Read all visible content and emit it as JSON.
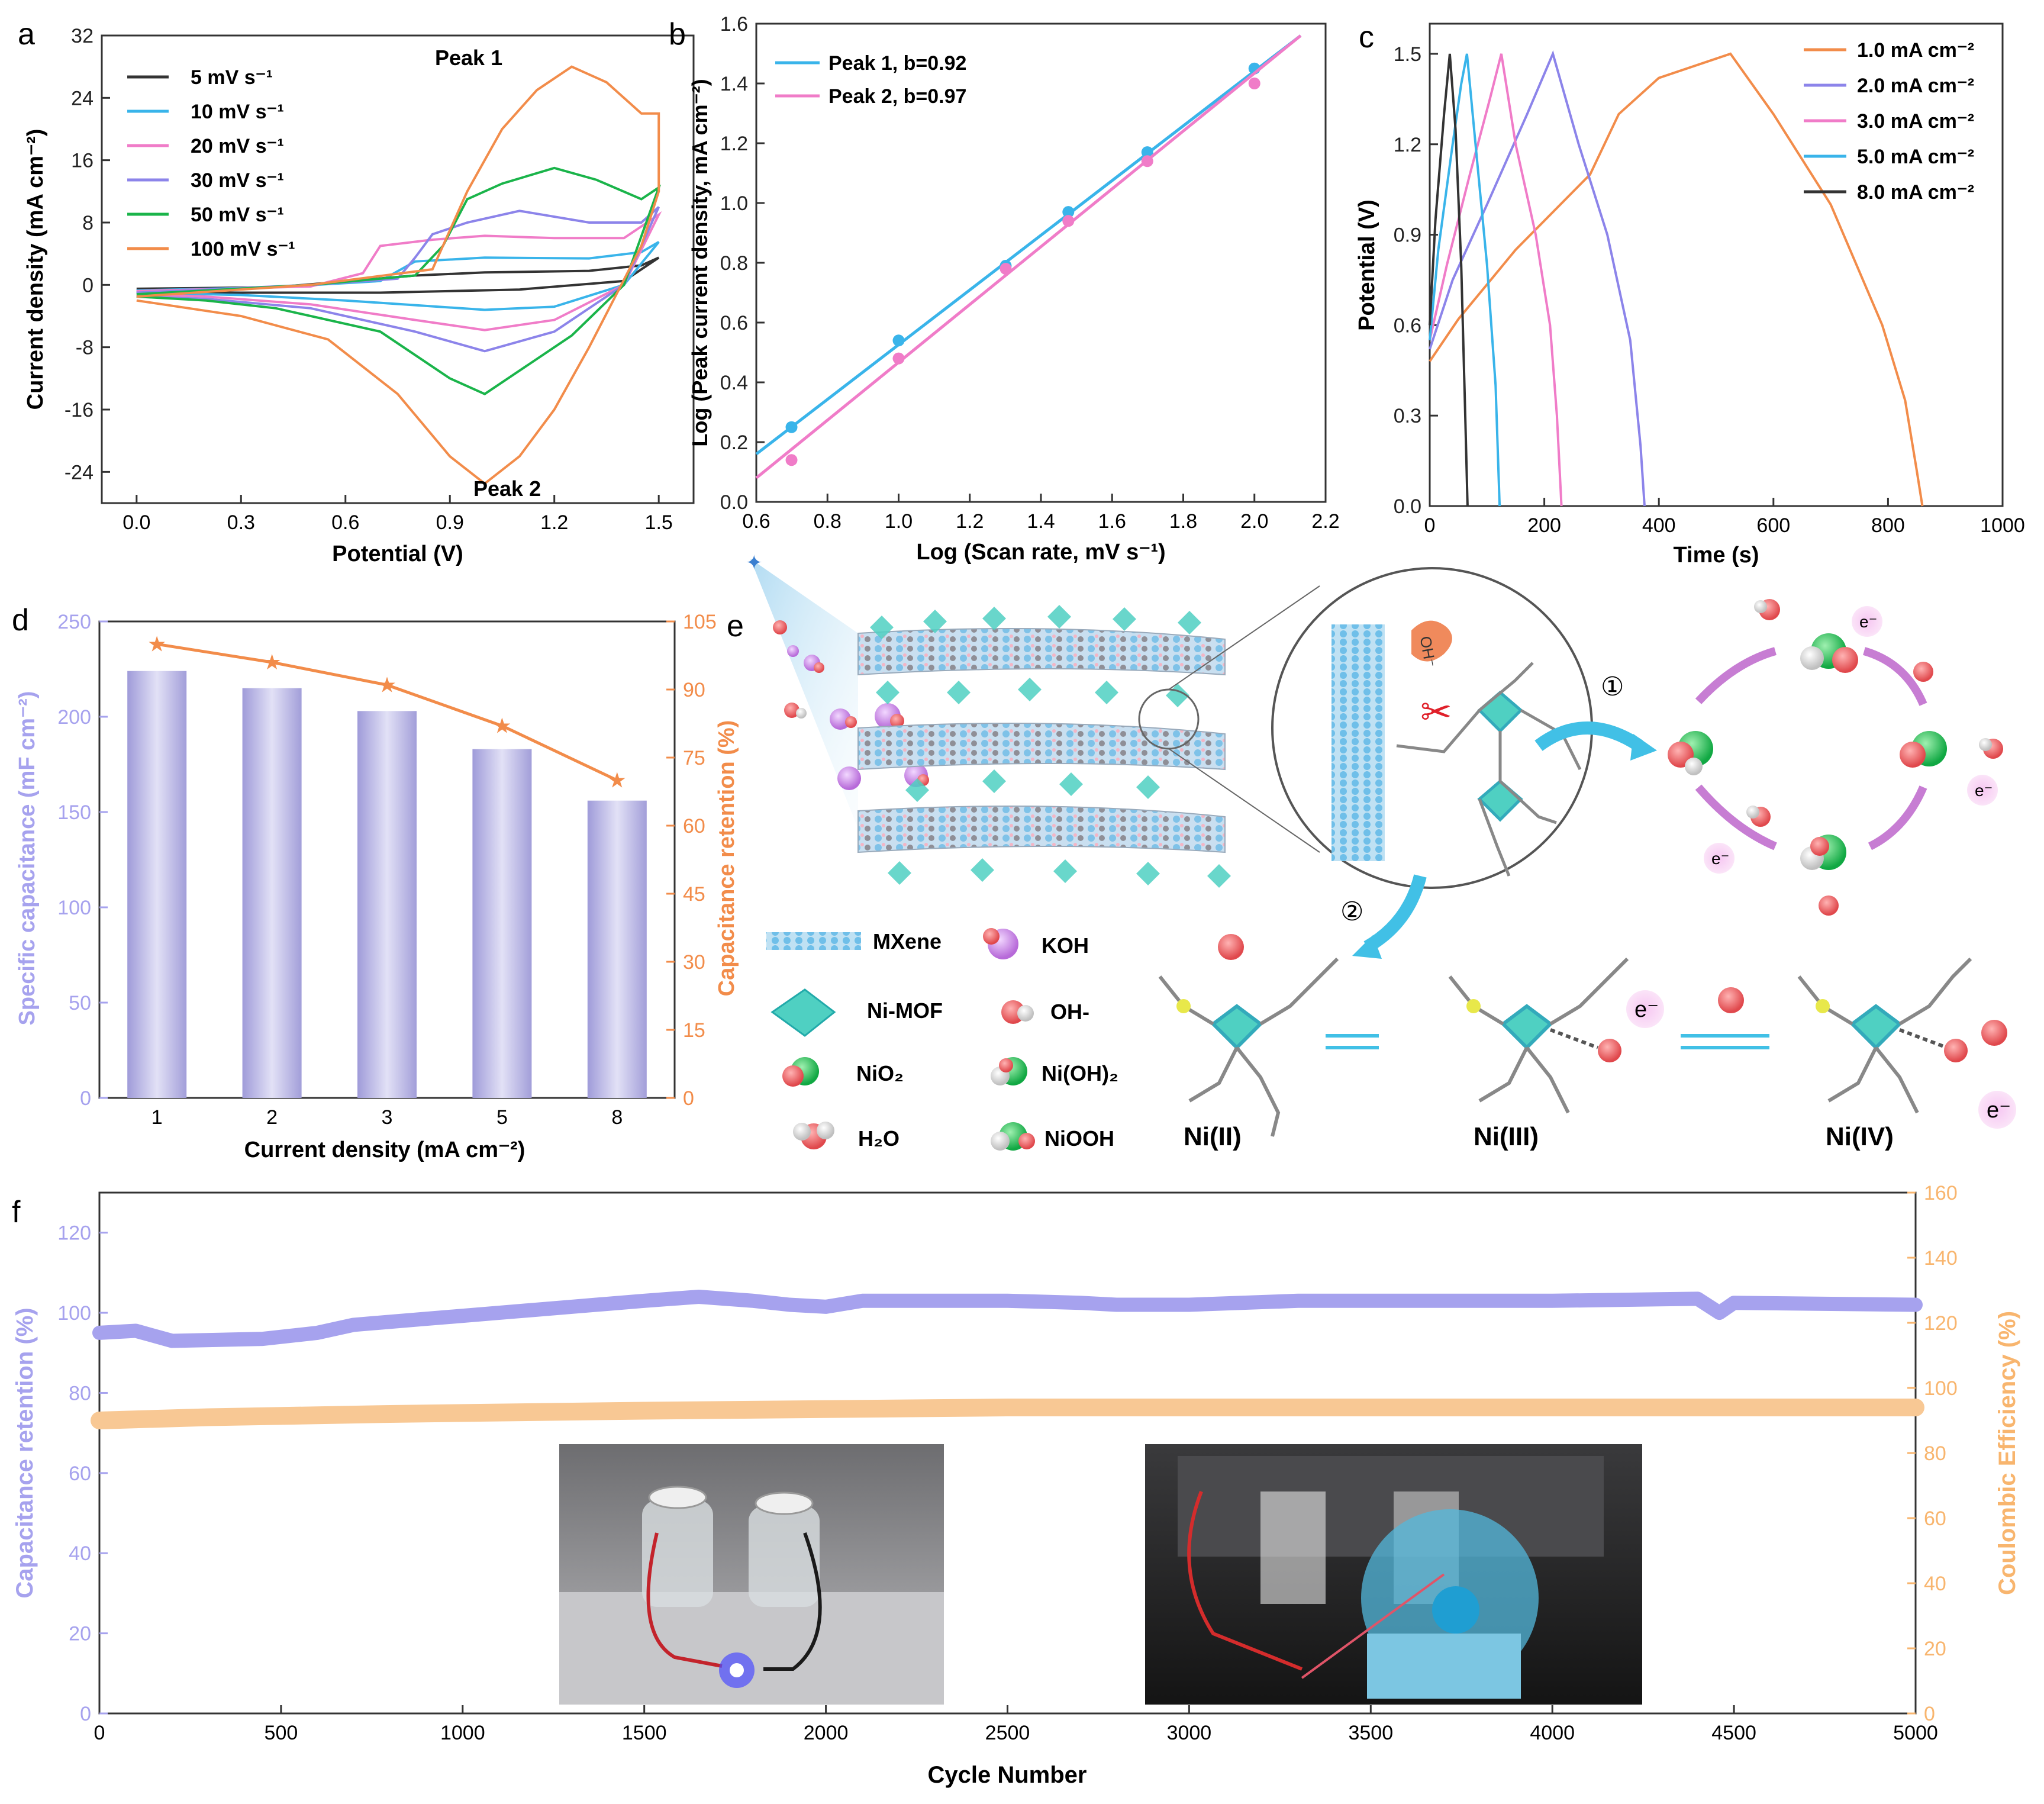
{
  "colors": {
    "orange": "#f28c4a",
    "blue": "#39b4ea",
    "pink": "#f07cc8",
    "purple": "#8c84ea",
    "green": "#1ab44a",
    "black": "#333333",
    "bar": "#b9b7e6",
    "teal": "#4fd0c2",
    "arrow": "#41c0e6",
    "retention": "#a6a2ee",
    "coulombic": "#f8c894"
  },
  "panel_labels": [
    "a",
    "b",
    "c",
    "d",
    "e",
    "f"
  ],
  "chart_data": [
    {
      "id": "a",
      "type": "line",
      "xlabel": "Potential (V)",
      "ylabel": "Current density (mA cm⁻²)",
      "xlim": [
        -0.1,
        1.6
      ],
      "ylim": [
        -28,
        32
      ],
      "xticks": [
        "0.0",
        "0.3",
        "0.6",
        "0.9",
        "1.2",
        "1.5"
      ],
      "yticks": [
        "-24",
        "-16",
        "-8",
        "0",
        "8",
        "16",
        "24",
        "32"
      ],
      "annotations": [
        "Peak 1",
        "Peak 2"
      ],
      "series": [
        {
          "name": "5   mV s⁻¹",
          "color": "black",
          "anodic": [
            [
              0,
              -0.5
            ],
            [
              0.4,
              -0.3
            ],
            [
              0.8,
              1.2
            ],
            [
              1.0,
              1.6
            ],
            [
              1.3,
              1.8
            ],
            [
              1.45,
              2.5
            ],
            [
              1.5,
              3.5
            ]
          ],
          "cathodic": [
            [
              1.5,
              3.5
            ],
            [
              1.4,
              0.5
            ],
            [
              1.1,
              -0.6
            ],
            [
              0.7,
              -1.0
            ],
            [
              0.3,
              -1.0
            ],
            [
              0,
              -0.9
            ]
          ]
        },
        {
          "name": "10  mV s⁻¹",
          "color": "blue",
          "anodic": [
            [
              0,
              -0.7
            ],
            [
              0.4,
              -0.3
            ],
            [
              0.7,
              0.5
            ],
            [
              0.8,
              3.0
            ],
            [
              1.0,
              3.5
            ],
            [
              1.3,
              3.4
            ],
            [
              1.45,
              4.2
            ],
            [
              1.5,
              5.5
            ]
          ],
          "cathodic": [
            [
              1.5,
              5.5
            ],
            [
              1.4,
              0
            ],
            [
              1.2,
              -2.8
            ],
            [
              1.0,
              -3.2
            ],
            [
              0.6,
              -2.0
            ],
            [
              0.3,
              -1.3
            ],
            [
              0,
              -1.0
            ]
          ]
        },
        {
          "name": "20  mV s⁻¹",
          "color": "pink",
          "anodic": [
            [
              0,
              -0.8
            ],
            [
              0.5,
              -0.2
            ],
            [
              0.65,
              1.5
            ],
            [
              0.7,
              5.0
            ],
            [
              0.85,
              5.8
            ],
            [
              1.0,
              6.3
            ],
            [
              1.2,
              6.0
            ],
            [
              1.4,
              6.0
            ],
            [
              1.5,
              9.0
            ]
          ],
          "cathodic": [
            [
              1.5,
              9.0
            ],
            [
              1.4,
              0
            ],
            [
              1.2,
              -4.5
            ],
            [
              1.0,
              -5.8
            ],
            [
              0.8,
              -4.5
            ],
            [
              0.5,
              -2.5
            ],
            [
              0.2,
              -1.5
            ],
            [
              0,
              -1.2
            ]
          ]
        },
        {
          "name": "30  mV s⁻¹",
          "color": "purple",
          "anodic": [
            [
              0,
              -1.0
            ],
            [
              0.5,
              0
            ],
            [
              0.75,
              0.8
            ],
            [
              0.8,
              3.5
            ],
            [
              0.85,
              6.5
            ],
            [
              0.95,
              8.0
            ],
            [
              1.1,
              9.5
            ],
            [
              1.3,
              8.0
            ],
            [
              1.45,
              8.0
            ],
            [
              1.5,
              10.0
            ]
          ],
          "cathodic": [
            [
              1.5,
              10.0
            ],
            [
              1.4,
              0
            ],
            [
              1.2,
              -6.0
            ],
            [
              1.0,
              -8.5
            ],
            [
              0.8,
              -6.0
            ],
            [
              0.5,
              -3.0
            ],
            [
              0.2,
              -1.8
            ],
            [
              0,
              -1.5
            ]
          ]
        },
        {
          "name": "50  mV s⁻¹",
          "color": "green",
          "anodic": [
            [
              0,
              -1.2
            ],
            [
              0.5,
              0
            ],
            [
              0.8,
              1.2
            ],
            [
              0.88,
              5.0
            ],
            [
              0.95,
              11.0
            ],
            [
              1.05,
              13.0
            ],
            [
              1.2,
              15.0
            ],
            [
              1.32,
              13.5
            ],
            [
              1.45,
              11.0
            ],
            [
              1.5,
              12.5
            ]
          ],
          "cathodic": [
            [
              1.5,
              12.5
            ],
            [
              1.4,
              0
            ],
            [
              1.25,
              -6.5
            ],
            [
              1.1,
              -11.0
            ],
            [
              1.0,
              -14.0
            ],
            [
              0.9,
              -12.0
            ],
            [
              0.7,
              -6.0
            ],
            [
              0.4,
              -3.0
            ],
            [
              0.2,
              -2.0
            ],
            [
              0,
              -1.5
            ]
          ]
        },
        {
          "name": "100 mV s⁻¹",
          "color": "orange",
          "anodic": [
            [
              0,
              -1.5
            ],
            [
              0.5,
              0
            ],
            [
              0.85,
              2.0
            ],
            [
              0.95,
              12.0
            ],
            [
              1.05,
              20.0
            ],
            [
              1.15,
              25.0
            ],
            [
              1.25,
              28.0
            ],
            [
              1.35,
              26.0
            ],
            [
              1.45,
              22.0
            ],
            [
              1.5,
              22.0
            ],
            [
              1.5,
              12.0
            ]
          ],
          "cathodic": [
            [
              1.5,
              12.0
            ],
            [
              1.45,
              5.0
            ],
            [
              1.3,
              -8.0
            ],
            [
              1.2,
              -16.0
            ],
            [
              1.1,
              -22.0
            ],
            [
              1.0,
              -25.5
            ],
            [
              0.9,
              -22.0
            ],
            [
              0.75,
              -14.0
            ],
            [
              0.55,
              -7.0
            ],
            [
              0.3,
              -4.0
            ],
            [
              0,
              -2.0
            ]
          ]
        }
      ]
    },
    {
      "id": "b",
      "type": "scatter",
      "xlabel": "Log (Scan rate, mV s⁻¹)",
      "ylabel": "Log (Peak current density, mA cm⁻²)",
      "xlim": [
        0.6,
        2.2
      ],
      "ylim": [
        0.0,
        1.6
      ],
      "xticks": [
        "0.6",
        "0.8",
        "1.0",
        "1.2",
        "1.4",
        "1.6",
        "1.8",
        "2.0",
        "2.2"
      ],
      "yticks": [
        "0.0",
        "0.2",
        "0.4",
        "0.6",
        "0.8",
        "1.0",
        "1.2",
        "1.4",
        "1.6"
      ],
      "x": [
        0.699,
        1.0,
        1.301,
        1.477,
        1.699,
        2.0
      ],
      "series": [
        {
          "name": "Peak 1, b=0.92",
          "color": "blue",
          "values": [
            0.25,
            0.54,
            0.79,
            0.97,
            1.17,
            1.45
          ],
          "fit": [
            [
              0.6,
              0.16
            ],
            [
              2.13,
              1.56
            ]
          ]
        },
        {
          "name": "Peak 2, b=0.97",
          "color": "pink",
          "values": [
            0.14,
            0.48,
            0.78,
            0.94,
            1.14,
            1.4
          ],
          "fit": [
            [
              0.6,
              0.08
            ],
            [
              2.13,
              1.56
            ]
          ]
        }
      ]
    },
    {
      "id": "c",
      "type": "line",
      "xlabel": "Time (s)",
      "ylabel": "Potential (V)",
      "xlim": [
        0,
        1000
      ],
      "ylim": [
        0,
        1.6
      ],
      "xticks": [
        "0",
        "200",
        "400",
        "600",
        "800",
        "1000"
      ],
      "yticks": [
        "0.0",
        "0.3",
        "0.6",
        "0.9",
        "1.2",
        "1.5"
      ],
      "series": [
        {
          "name": "1.0 mA cm⁻²",
          "color": "orange",
          "points": [
            [
              0,
              0.48
            ],
            [
              50,
              0.62
            ],
            [
              150,
              0.85
            ],
            [
              280,
              1.1
            ],
            [
              330,
              1.3
            ],
            [
              400,
              1.42
            ],
            [
              525,
              1.5
            ],
            [
              600,
              1.3
            ],
            [
              700,
              1.0
            ],
            [
              790,
              0.6
            ],
            [
              830,
              0.35
            ],
            [
              850,
              0.12
            ],
            [
              860,
              0
            ]
          ]
        },
        {
          "name": "2.0 mA cm⁻²",
          "color": "purple",
          "points": [
            [
              0,
              0.52
            ],
            [
              40,
              0.75
            ],
            [
              100,
              1.0
            ],
            [
              170,
              1.3
            ],
            [
              215,
              1.5
            ],
            [
              260,
              1.2
            ],
            [
              310,
              0.9
            ],
            [
              350,
              0.55
            ],
            [
              368,
              0.2
            ],
            [
              375,
              0
            ]
          ]
        },
        {
          "name": "3.0 mA cm⁻²",
          "color": "pink",
          "points": [
            [
              0,
              0.55
            ],
            [
              30,
              0.8
            ],
            [
              70,
              1.1
            ],
            [
              105,
              1.35
            ],
            [
              125,
              1.5
            ],
            [
              150,
              1.2
            ],
            [
              185,
              0.9
            ],
            [
              210,
              0.6
            ],
            [
              222,
              0.3
            ],
            [
              230,
              0
            ]
          ]
        },
        {
          "name": "5.0 mA cm⁻²",
          "color": "blue",
          "points": [
            [
              0,
              0.55
            ],
            [
              15,
              0.85
            ],
            [
              40,
              1.2
            ],
            [
              55,
              1.4
            ],
            [
              65,
              1.5
            ],
            [
              80,
              1.2
            ],
            [
              100,
              0.8
            ],
            [
              115,
              0.4
            ],
            [
              122,
              0
            ]
          ]
        },
        {
          "name": "8.0 mA cm⁻²",
          "color": "black",
          "points": [
            [
              0,
              0.6
            ],
            [
              10,
              0.95
            ],
            [
              25,
              1.3
            ],
            [
              35,
              1.5
            ],
            [
              45,
              1.25
            ],
            [
              55,
              0.8
            ],
            [
              62,
              0.3
            ],
            [
              66,
              0
            ]
          ]
        }
      ]
    },
    {
      "id": "d",
      "type": "bar",
      "xlabel": "Current density (mA cm⁻²)",
      "ylabel": "Specific capacitance (mF cm⁻²)",
      "y2label": "Capacitance retention (%)",
      "categories": [
        "1",
        "2",
        "3",
        "5",
        "8"
      ],
      "values": [
        224,
        215,
        203,
        183,
        156
      ],
      "retention": [
        100,
        96,
        91,
        82,
        70
      ],
      "ylim": [
        0,
        250
      ],
      "y2lim": [
        0,
        105
      ],
      "yticks": [
        "0",
        "50",
        "100",
        "150",
        "200",
        "250"
      ],
      "y2ticks": [
        "0",
        "15",
        "30",
        "45",
        "60",
        "75",
        "90",
        "105"
      ]
    },
    {
      "id": "f",
      "type": "scatter",
      "xlabel": "Cycle Number",
      "ylabel": "Capacitance retention (%)",
      "y2label": "Coulombic Efficiency (%)",
      "xlim": [
        0,
        5000
      ],
      "ylim": [
        0,
        130
      ],
      "y2lim": [
        0,
        160
      ],
      "xticks": [
        "0",
        "500",
        "1000",
        "1500",
        "2000",
        "2500",
        "3000",
        "3500",
        "4000",
        "4500",
        "5000"
      ],
      "yticks": [
        "0",
        "20",
        "40",
        "60",
        "80",
        "100",
        "120"
      ],
      "y2ticks": [
        "0",
        "20",
        "40",
        "60",
        "80",
        "100",
        "120",
        "140",
        "160"
      ],
      "series": [
        {
          "name": "Capacitance retention",
          "color": "retention",
          "points": [
            [
              0,
              95
            ],
            [
              100,
              95.5
            ],
            [
              200,
              93
            ],
            [
              450,
              93.5
            ],
            [
              600,
              95
            ],
            [
              700,
              97
            ],
            [
              900,
              98.5
            ],
            [
              1100,
              100
            ],
            [
              1300,
              101.5
            ],
            [
              1500,
              103
            ],
            [
              1650,
              104
            ],
            [
              1800,
              103
            ],
            [
              1900,
              102
            ],
            [
              2000,
              101.5
            ],
            [
              2100,
              103
            ],
            [
              2500,
              103
            ],
            [
              2700,
              102.5
            ],
            [
              2800,
              102
            ],
            [
              3000,
              102
            ],
            [
              3300,
              103
            ],
            [
              3700,
              103
            ],
            [
              4000,
              103
            ],
            [
              4400,
              103.5
            ],
            [
              4460,
              100
            ],
            [
              4500,
              102.5
            ],
            [
              5000,
              102
            ]
          ]
        },
        {
          "name": "Coulombic Efficiency",
          "color": "coulombic",
          "points": [
            [
              0,
              90
            ],
            [
              300,
              91
            ],
            [
              800,
              92
            ],
            [
              1500,
              93
            ],
            [
              2000,
              93.5
            ],
            [
              2500,
              94
            ],
            [
              3000,
              94
            ],
            [
              3500,
              94
            ],
            [
              4000,
              94
            ],
            [
              5000,
              94
            ]
          ]
        }
      ]
    }
  ],
  "panel_e": {
    "legend": [
      "MXene",
      "KOH",
      "Ni-MOF",
      "OH-",
      "NiO₂",
      "Ni(OH)₂",
      "H₂O",
      "NiOOH"
    ],
    "states": [
      "Ni(II)",
      "Ni(III)",
      "Ni(IV)"
    ],
    "steps": [
      "①",
      "②"
    ],
    "electron": "e⁻",
    "oh_label": "OH⁻"
  }
}
